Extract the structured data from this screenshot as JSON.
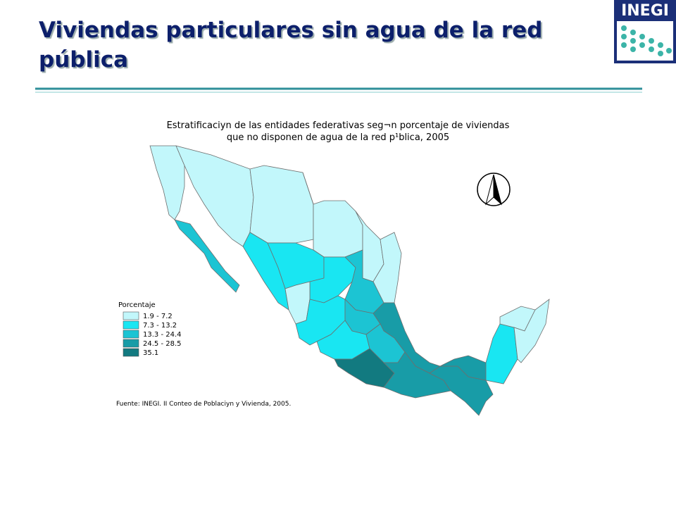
{
  "header": {
    "title": "Viviendas particulares sin agua de la red pública",
    "logo": "INEGI"
  },
  "map": {
    "title": [
      "Estratificaciyn de las entidades federativas seg¬n porcentaje de viviendas",
      "que no disponen de agua de la red p¹blica, 2005"
    ],
    "legend": {
      "title": "Porcentaje",
      "items": [
        {
          "label": "1.9 - 7.2",
          "color": "#c2f7fb"
        },
        {
          "label": "7.3 - 13.2",
          "color": "#19e6f2"
        },
        {
          "label": "13.3 - 24.4",
          "color": "#1cc4d3"
        },
        {
          "label": "24.5 - 28.5",
          "color": "#189ca7"
        },
        {
          "label": "35.1",
          "color": "#127a80"
        }
      ]
    },
    "source": "Fuente: INEGI. II Conteo de Poblaciyn y Vivienda, 2005."
  }
}
